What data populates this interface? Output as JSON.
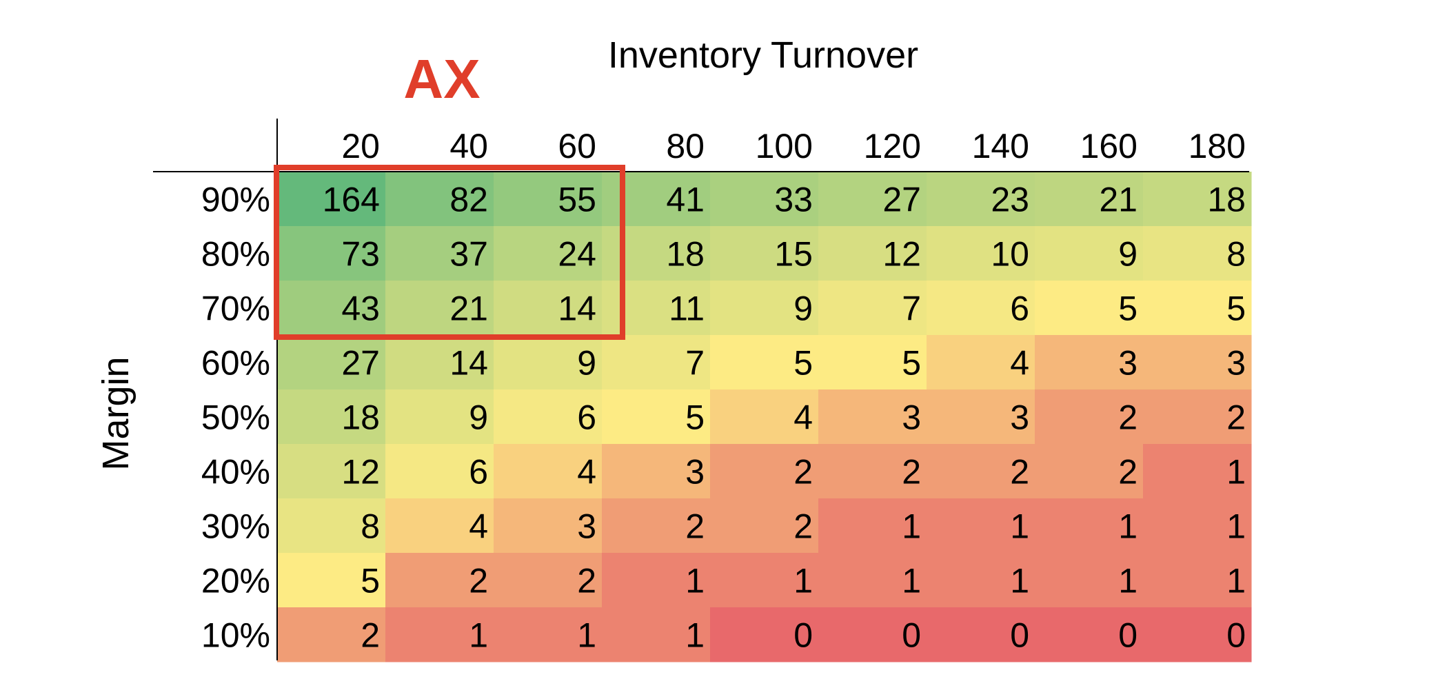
{
  "chart_data": {
    "type": "heatmap",
    "title": "Inventory Turnover",
    "xlabel": "Inventory Turnover",
    "ylabel": "Margin",
    "x": [
      "20",
      "40",
      "60",
      "80",
      "100",
      "120",
      "140",
      "160",
      "180"
    ],
    "y": [
      "90%",
      "80%",
      "70%",
      "60%",
      "50%",
      "40%",
      "30%",
      "20%",
      "10%"
    ],
    "values": [
      [
        164,
        82,
        55,
        41,
        33,
        27,
        23,
        21,
        18
      ],
      [
        73,
        37,
        24,
        18,
        15,
        12,
        10,
        9,
        8
      ],
      [
        43,
        21,
        14,
        11,
        9,
        7,
        6,
        5,
        5
      ],
      [
        27,
        14,
        9,
        7,
        5,
        5,
        4,
        3,
        3
      ],
      [
        18,
        9,
        6,
        5,
        4,
        3,
        3,
        2,
        2
      ],
      [
        12,
        6,
        4,
        3,
        2,
        2,
        2,
        2,
        1
      ],
      [
        8,
        4,
        3,
        2,
        2,
        1,
        1,
        1,
        1
      ],
      [
        5,
        2,
        2,
        1,
        1,
        1,
        1,
        1,
        1
      ],
      [
        2,
        1,
        1,
        1,
        0,
        0,
        0,
        0,
        0
      ]
    ],
    "color_scale": {
      "low": "#e8696b",
      "mid": "#fdeb84",
      "high": "#64b97b"
    },
    "annotations": [
      {
        "label": "AX",
        "color": "#e03e2a",
        "highlight_rows": [
          "90%",
          "80%",
          "70%"
        ],
        "highlight_columns": [
          "20",
          "40",
          "60"
        ]
      }
    ],
    "grid": false,
    "legend": "none"
  }
}
